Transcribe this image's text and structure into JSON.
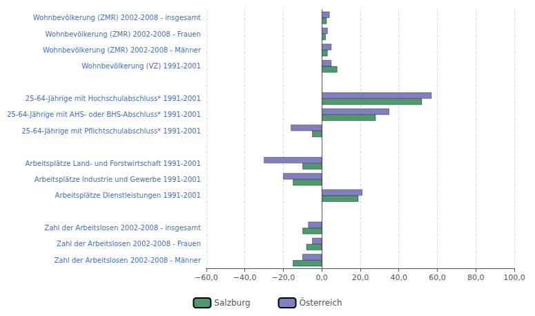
{
  "chart_data": {
    "type": "bar",
    "orientation": "horizontal",
    "categories": [
      "Wohnbevölkerung (ZMR) 2002-2008 - insgesamt",
      "Wohnbevölkerung (ZMR) 2002-2008 - Frauen",
      "Wohnbevölkerung (ZMR) 2002-2008 - Männer",
      "Wohnbevölkerung (VZ) 1991-2001",
      null,
      "25-64-Jährige mit Hochschulabschluss* 1991-2001",
      "25-64-Jährige mit AHS- oder BHS-Abschluss* 1991-2001",
      "25-64-Jährige mit Pflichtschulabschluss* 1991-2001",
      null,
      "Arbeitsplätze Land- und Forstwirtschaft 1991-2001",
      "Arbeitsplätze Industrie und Gewerbe 1991-2001",
      "Arbeitsplätze Dienstleistungen 1991-2001",
      null,
      "Zahl der Arbeitslosen 2002-2008 - insgesamt",
      "Zahl der Arbeitslosen 2002-2008 - Frauen",
      "Zahl der Arbeitslosen 2002-2008 - Männer"
    ],
    "series": [
      {
        "name": "Salzburg",
        "color": "#4e9a6e",
        "values": [
          2.5,
          2.0,
          3.0,
          8.0,
          null,
          52.0,
          28.0,
          -5.0,
          null,
          -10.0,
          -15.0,
          19.0,
          null,
          -10.0,
          -8.0,
          -15.0
        ]
      },
      {
        "name": "Österreich",
        "color": "#8080c0",
        "values": [
          4.0,
          3.0,
          5.0,
          5.0,
          null,
          57.0,
          35.0,
          -16.0,
          null,
          -30.0,
          -20.0,
          21.0,
          null,
          -7.0,
          -5.0,
          -10.0
        ]
      }
    ],
    "xlim": [
      -60,
      100
    ],
    "xticks": [
      {
        "value": -60,
        "label": "−60,0"
      },
      {
        "value": -40,
        "label": "−40,0"
      },
      {
        "value": -20,
        "label": "−20,0"
      },
      {
        "value": 0,
        "label": "0,0"
      },
      {
        "value": 20,
        "label": "20,0"
      },
      {
        "value": 40,
        "label": "40,0"
      },
      {
        "value": 60,
        "label": "60,0"
      },
      {
        "value": 80,
        "label": "80,0"
      },
      {
        "value": 100,
        "label": "100,0"
      }
    ],
    "grid": true,
    "legend": "bottom"
  }
}
